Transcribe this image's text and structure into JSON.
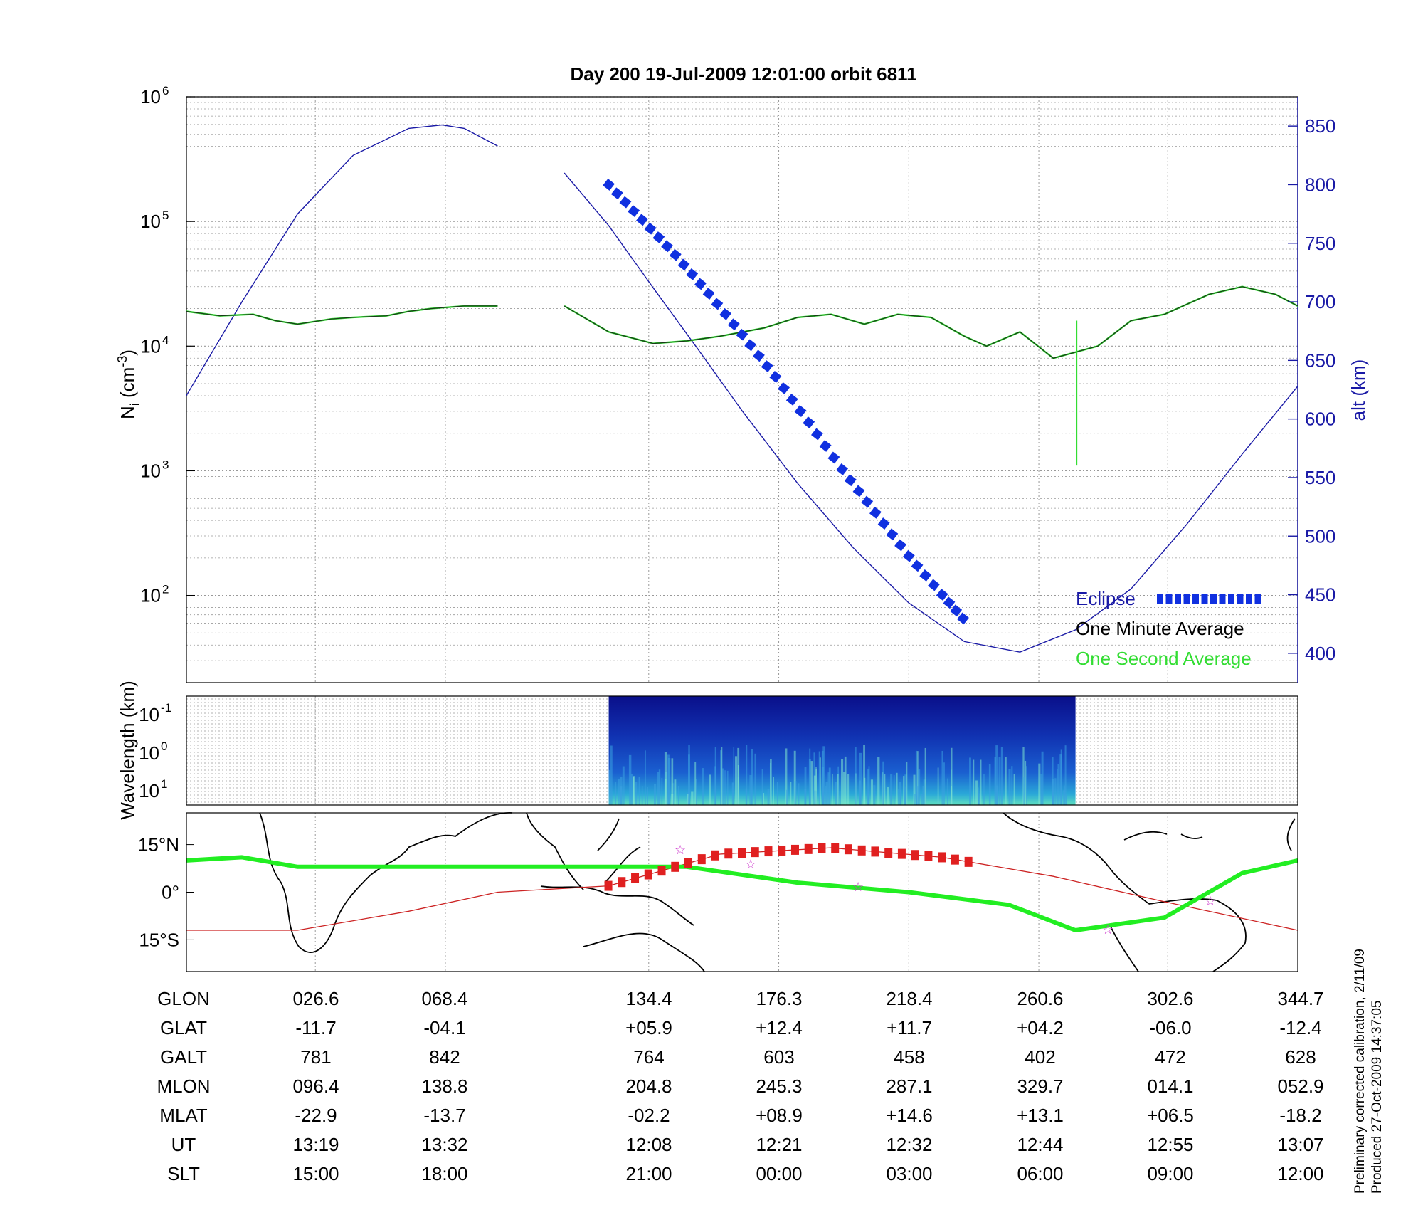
{
  "title": "Day 200  19-Jul-2009 12:01:00   orbit 6811",
  "footnote": {
    "line1": "Preliminary corrected calibration, 2/11/09",
    "line2": "Produced 27-Oct-2009 14:37:05"
  },
  "colors": {
    "altitude": "#1a1aa6",
    "eclipse": "#1030e0",
    "minute_avg": "#1a3a1a",
    "second_avg": "#33dd33",
    "orbit_track": "#cc2222",
    "footprint": "#22ee22",
    "stars": "#cc33cc"
  },
  "chart_data": [
    {
      "type": "line",
      "panel": "density",
      "ylabel_left": "N_i (cm^-3)",
      "ylabel_left_main": "N",
      "ylabel_left_sub": "i",
      "ylabel_left_unit": "(cm",
      "ylabel_left_exp": "-3",
      "ylabel_left_close": ")",
      "ylabel_right": "alt (km)",
      "yscale_left": "log",
      "ylim_left": [
        20,
        1000000
      ],
      "ytick_left_base": "10",
      "ytick_left_exps": [
        "2",
        "3",
        "4",
        "5",
        "6"
      ],
      "ylim_right": [
        375,
        875
      ],
      "yticks_right": [
        "400",
        "450",
        "500",
        "550",
        "600",
        "650",
        "700",
        "750",
        "800",
        "850"
      ],
      "grid": true,
      "legend": {
        "placement": "bottom-right",
        "eclipse": "Eclipse",
        "minute": "One Minute Average",
        "second": "One Second Average"
      },
      "series": [
        {
          "name": "One Minute Average",
          "x": [
            0,
            3,
            6,
            8,
            10,
            13,
            15,
            18,
            20,
            22,
            25,
            28,
            34,
            38,
            42,
            45,
            48,
            52,
            55,
            58,
            61,
            64,
            67,
            70,
            72,
            75,
            78,
            82,
            85,
            88,
            92,
            95,
            98,
            100
          ],
          "values": [
            19000,
            17500,
            18000,
            16000,
            15000,
            16500,
            17000,
            17500,
            19000,
            20000,
            21000,
            21000,
            21000,
            13000,
            10500,
            11000,
            12000,
            14000,
            17000,
            18000,
            15000,
            18000,
            17000,
            12000,
            10000,
            13000,
            8000,
            10000,
            16000,
            18000,
            26000,
            30000,
            26000,
            21000
          ]
        },
        {
          "name": "alt",
          "x": [
            0,
            5,
            10,
            15,
            20,
            23,
            25,
            28,
            34,
            38,
            42,
            46,
            50,
            55,
            60,
            65,
            70,
            75,
            80,
            85,
            90,
            95,
            100
          ],
          "values": [
            620,
            700,
            775,
            825,
            848,
            851,
            848,
            833,
            810,
            765,
            712,
            660,
            607,
            545,
            490,
            443,
            410,
            401,
            420,
            455,
            510,
            570,
            628
          ]
        },
        {
          "name": "Eclipse",
          "x": [
            38,
            41,
            44,
            47,
            50,
            53,
            56,
            59,
            62,
            65,
            68,
            70.5
          ],
          "values": [
            800,
            770,
            740,
            707,
            672,
            636,
            597,
            557,
            520,
            483,
            450,
            423
          ]
        }
      ]
    },
    {
      "type": "heatmap",
      "panel": "spectrogram",
      "ylabel": "Wavelength (km)",
      "ytick_base": "10",
      "ytick_exps": [
        "-1",
        "0",
        "1"
      ],
      "x_range": [
        38,
        80
      ]
    },
    {
      "type": "line",
      "panel": "map",
      "ytick_labels": [
        "15°N",
        "0°",
        "15°S"
      ],
      "ylim": [
        -25,
        25
      ],
      "series": [
        {
          "name": "orbit track",
          "x": [
            0,
            10,
            20,
            28,
            38,
            48,
            58,
            68,
            78,
            88,
            100
          ],
          "values": [
            -12,
            -12,
            -6,
            0,
            2,
            12,
            14,
            11,
            5,
            -3,
            -12
          ]
        },
        {
          "name": "footprint",
          "x": [
            0,
            5,
            10,
            20,
            30,
            45,
            55,
            65,
            74,
            80,
            88,
            95,
            100
          ],
          "values": [
            10,
            11,
            8,
            8,
            8,
            8,
            3,
            0,
            -4,
            -12,
            -8,
            6,
            10
          ]
        }
      ]
    }
  ],
  "table": {
    "rows": [
      {
        "label": "GLON",
        "values": [
          "026.6",
          "068.4",
          "134.4",
          "176.3",
          "218.4",
          "260.6",
          "302.6",
          "344.7"
        ]
      },
      {
        "label": "GLAT",
        "values": [
          "-11.7",
          "-04.1",
          "+05.9",
          "+12.4",
          "+11.7",
          "+04.2",
          "-06.0",
          "-12.4"
        ]
      },
      {
        "label": "GALT",
        "values": [
          "781",
          "842",
          "764",
          "603",
          "458",
          "402",
          "472",
          "628"
        ]
      },
      {
        "label": "MLON",
        "values": [
          "096.4",
          "138.8",
          "204.8",
          "245.3",
          "287.1",
          "329.7",
          "014.1",
          "052.9"
        ]
      },
      {
        "label": "MLAT",
        "values": [
          "-22.9",
          "-13.7",
          "-02.2",
          "+08.9",
          "+14.6",
          "+13.1",
          "+06.5",
          "-18.2"
        ]
      },
      {
        "label": "UT",
        "values": [
          "13:19",
          "13:32",
          "12:08",
          "12:21",
          "12:32",
          "12:44",
          "12:55",
          "13:07"
        ]
      },
      {
        "label": "SLT",
        "values": [
          "15:00",
          "18:00",
          "21:00",
          "00:00",
          "03:00",
          "06:00",
          "09:00",
          "12:00"
        ]
      }
    ]
  }
}
